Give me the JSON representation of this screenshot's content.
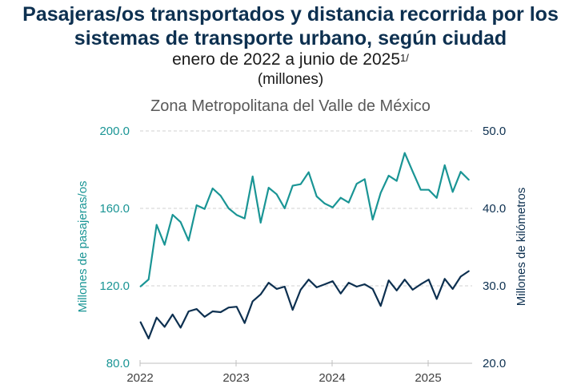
{
  "header": {
    "title_line1": "Pasajeras/os transportados y distancia recorrida por los",
    "title_line2": "sistemas de transporte urbano, según ciudad",
    "subtitle": "enero de 2022 a junio de 2025",
    "subtitle_note": "1/",
    "units": "(millones)",
    "city": "Zona Metropolitana del Valle de México"
  },
  "chart_data": {
    "type": "line",
    "title": "Zona Metropolitana del Valle de México",
    "xlabel": "",
    "x_start": "2022-01",
    "x_end": "2025-06",
    "x_tick_labels": [
      "2022",
      "2023",
      "2024",
      "2025"
    ],
    "grid": true,
    "axes": {
      "left": {
        "label": "Millones de pasajeras/os",
        "ylim": [
          80,
          200
        ],
        "ticks": [
          "80.0",
          "120.0",
          "160.0",
          "200.0"
        ],
        "color": "#1a9595"
      },
      "right": {
        "label": "Millones de kilómetros",
        "ylim": [
          20,
          50
        ],
        "ticks": [
          "20.0",
          "30.0",
          "40.0",
          "50.0"
        ],
        "color": "#0d3050"
      }
    },
    "x": [
      "2022-01",
      "2022-02",
      "2022-03",
      "2022-04",
      "2022-05",
      "2022-06",
      "2022-07",
      "2022-08",
      "2022-09",
      "2022-10",
      "2022-11",
      "2022-12",
      "2023-01",
      "2023-02",
      "2023-03",
      "2023-04",
      "2023-05",
      "2023-06",
      "2023-07",
      "2023-08",
      "2023-09",
      "2023-10",
      "2023-11",
      "2023-12",
      "2024-01",
      "2024-02",
      "2024-03",
      "2024-04",
      "2024-05",
      "2024-06",
      "2024-07",
      "2024-08",
      "2024-09",
      "2024-10",
      "2024-11",
      "2024-12",
      "2025-01",
      "2025-02",
      "2025-03",
      "2025-04",
      "2025-05",
      "2025-06"
    ],
    "series": [
      {
        "name": "Pasajeras/os transportados",
        "axis": "left",
        "color": "#1a9595",
        "values": [
          119.7,
          123.3,
          151.5,
          141.2,
          156.7,
          152.9,
          143.4,
          161.6,
          159.7,
          170.3,
          166.5,
          160.0,
          156.6,
          154.8,
          176.5,
          152.6,
          170.7,
          167.3,
          160.0,
          171.7,
          172.5,
          178.7,
          166.2,
          162.5,
          160.5,
          165.5,
          163.0,
          172.7,
          175.1,
          154.2,
          168.0,
          176.9,
          174.2,
          188.6,
          179.0,
          169.6,
          169.6,
          165.4,
          182.3,
          168.5,
          178.9,
          174.8
        ]
      },
      {
        "name": "Distancia recorrida (km)",
        "axis": "right",
        "color": "#0d3050",
        "values": [
          25.3,
          23.2,
          25.9,
          24.7,
          26.3,
          24.6,
          26.7,
          27.0,
          26.0,
          26.7,
          26.6,
          27.2,
          27.3,
          25.2,
          28.0,
          28.9,
          30.4,
          29.6,
          29.9,
          26.9,
          29.5,
          30.8,
          29.8,
          30.2,
          30.6,
          29.0,
          30.4,
          29.9,
          30.2,
          29.6,
          27.4,
          30.7,
          29.4,
          30.8,
          29.5,
          30.2,
          30.8,
          28.3,
          30.9,
          29.6,
          31.2,
          31.9
        ]
      }
    ]
  }
}
